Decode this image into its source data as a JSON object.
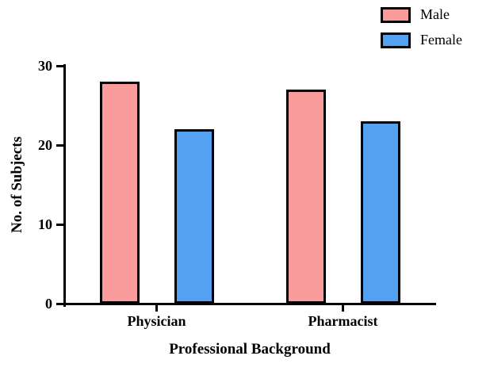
{
  "chart_data": {
    "type": "bar",
    "title": "",
    "categories": [
      "Physician",
      "Pharmacist"
    ],
    "series": [
      {
        "name": "Male",
        "color": "#FA9C9C",
        "values": [
          28,
          27
        ]
      },
      {
        "name": "Female",
        "color": "#54A1F1",
        "values": [
          22,
          23
        ]
      }
    ],
    "xlabel": "Professional Background",
    "ylabel": "No. of Subjects",
    "ylim": [
      0,
      30
    ],
    "yticks": [
      0,
      10,
      20,
      30
    ],
    "grid": false,
    "legend_position": "top-right",
    "bar_border_color": "#000000",
    "axis_color": "#000000",
    "background_color": "#FFFFFF"
  }
}
